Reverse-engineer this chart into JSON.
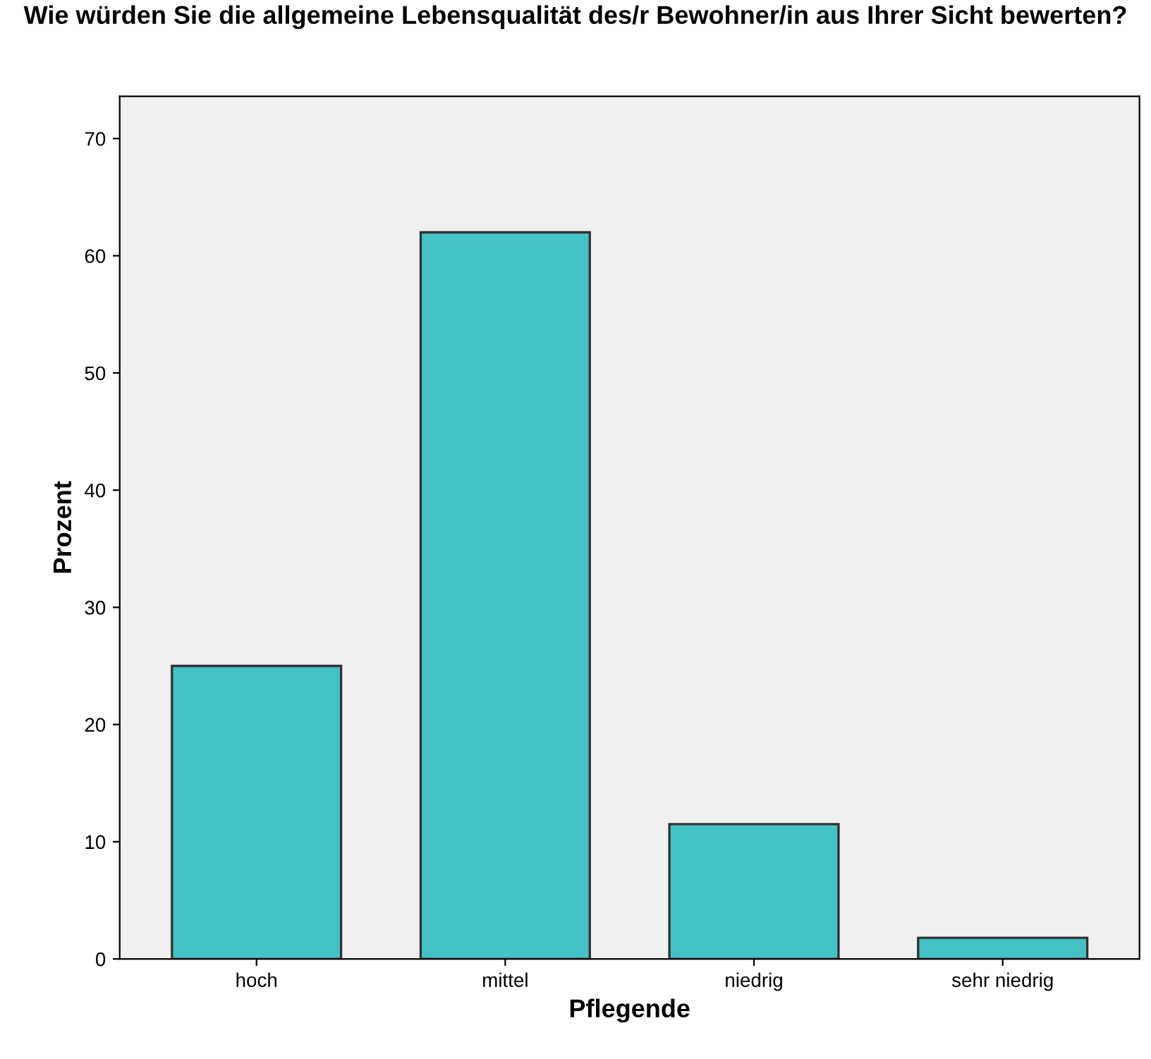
{
  "chart_data": {
    "type": "bar",
    "title": "Wie würden Sie die allgemeine Lebensqualität des/r Bewohner/in aus Ihrer Sicht bewerten?",
    "xlabel": "Pflegende",
    "ylabel": "Prozent",
    "categories": [
      "hoch",
      "mittel",
      "niedrig",
      "sehr niedrig"
    ],
    "values": [
      25,
      62,
      11.5,
      1.8
    ],
    "color": "#45c2c5",
    "ylim": [
      0,
      73.6
    ],
    "yticks": [
      0,
      10,
      20,
      30,
      40,
      50,
      60,
      70
    ],
    "grid": false
  }
}
